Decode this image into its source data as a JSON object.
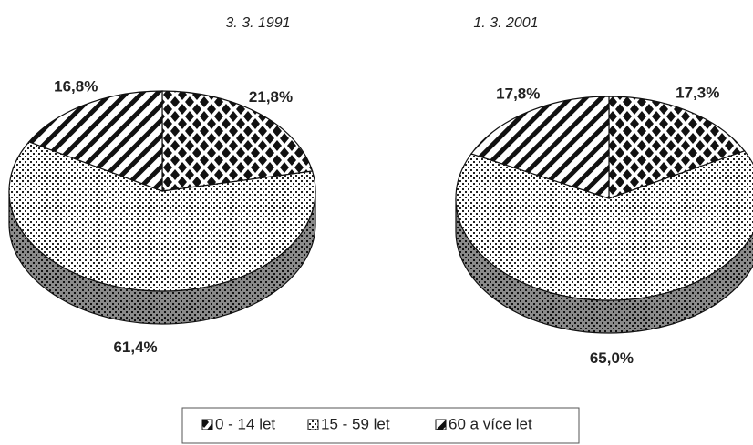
{
  "legend": [
    "0 - 14 let",
    "15 - 59 let",
    "60 a více let"
  ],
  "chart_data": [
    {
      "type": "pie",
      "title": "3. 3. 1991",
      "values": [
        21.8,
        61.4,
        16.8
      ],
      "value_labels": [
        "21,8%",
        "61,4%",
        "16,8%"
      ]
    },
    {
      "type": "pie",
      "title": "1. 3. 2001",
      "values": [
        17.3,
        65.0,
        17.8
      ],
      "value_labels": [
        "17,3%",
        "65,0%",
        "17,8%"
      ]
    }
  ]
}
